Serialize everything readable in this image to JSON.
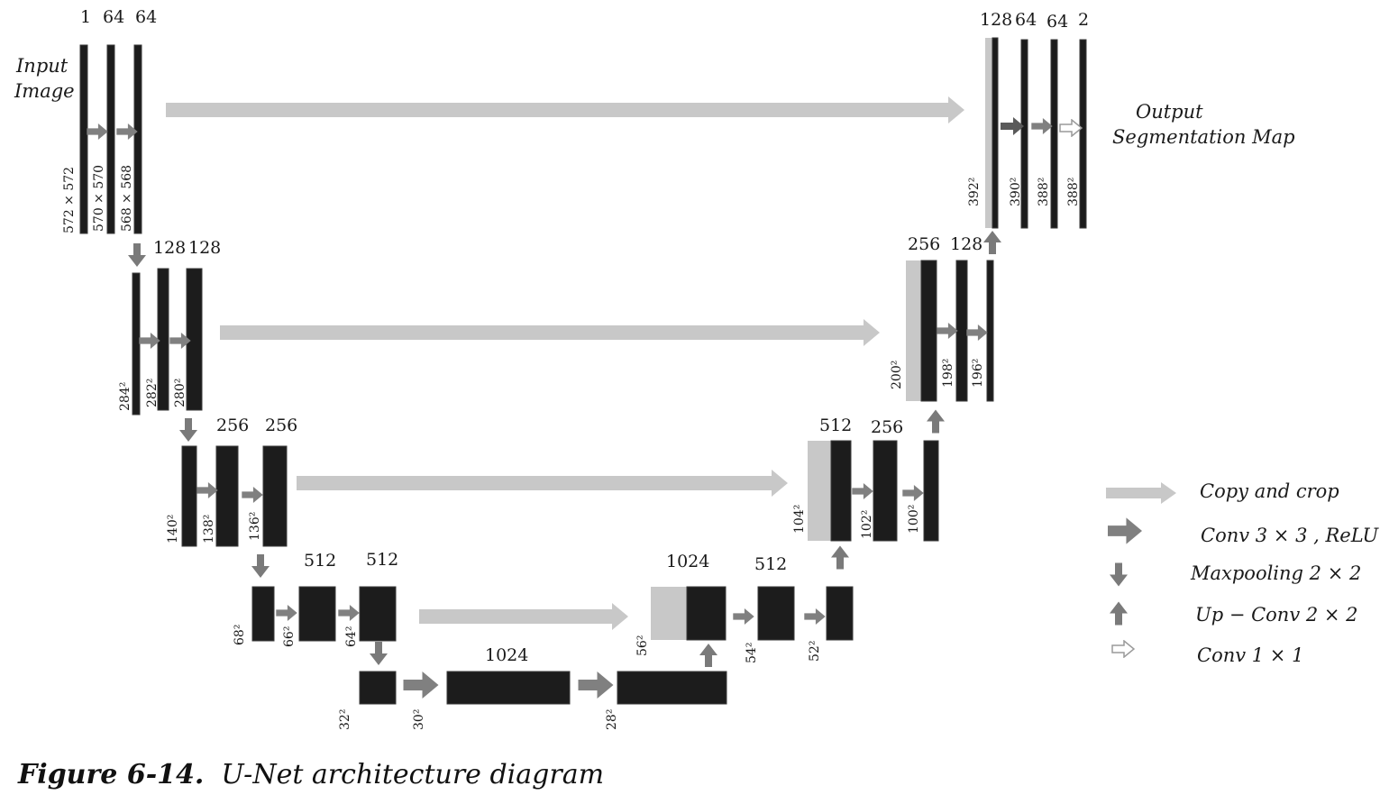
{
  "caption": {
    "label": "Figure 6-14.",
    "text": "U-Net architecture diagram"
  },
  "labels": {
    "input": [
      "Input",
      "Image"
    ],
    "output": [
      "Output",
      "Segmentation Map"
    ]
  },
  "channels": {
    "l1": [
      "1",
      "64",
      "64"
    ],
    "l2": [
      "128",
      "128"
    ],
    "l3": [
      "256",
      "256"
    ],
    "l4": [
      "512",
      "512"
    ],
    "bottom": "1024",
    "u4": [
      "1024",
      "512"
    ],
    "u3": [
      "512",
      "256"
    ],
    "u2": [
      "256",
      "128"
    ],
    "u1": [
      "128",
      "64",
      "64",
      "2"
    ]
  },
  "dims": {
    "l1": [
      "572 × 572",
      "570 × 570",
      "568 × 568"
    ],
    "l2": [
      "284²",
      "282²",
      "280²"
    ],
    "l3": [
      "140²",
      "138²",
      "136²"
    ],
    "l4": [
      "68²",
      "66²",
      "64²"
    ],
    "bottom": [
      "32²",
      "30²",
      "28²"
    ],
    "u4": [
      "56²",
      "54²",
      "52²"
    ],
    "u3": [
      "104²",
      "102²",
      "100²"
    ],
    "u2": [
      "200²",
      "198²",
      "196²"
    ],
    "u1": [
      "392²",
      "390²",
      "388²",
      "388²"
    ]
  },
  "legend": [
    {
      "icon": "copy-crop-arrow-icon",
      "label": "Copy and crop"
    },
    {
      "icon": "conv-arrow-icon",
      "label": "Conv 3 × 3 , ReLU"
    },
    {
      "icon": "maxpool-arrow-icon",
      "label": "Maxpooling 2 × 2"
    },
    {
      "icon": "upconv-arrow-icon",
      "label": "Up − Conv 2 × 2"
    },
    {
      "icon": "conv1x1-arrow-icon",
      "label": "Conv 1 × 1"
    }
  ],
  "colors": {
    "feature_map": "#1c1c1c",
    "copy_arrow": "#c8c8c8",
    "conv_arrow": "#808080",
    "up_down_arrow": "#7a7a7a"
  }
}
